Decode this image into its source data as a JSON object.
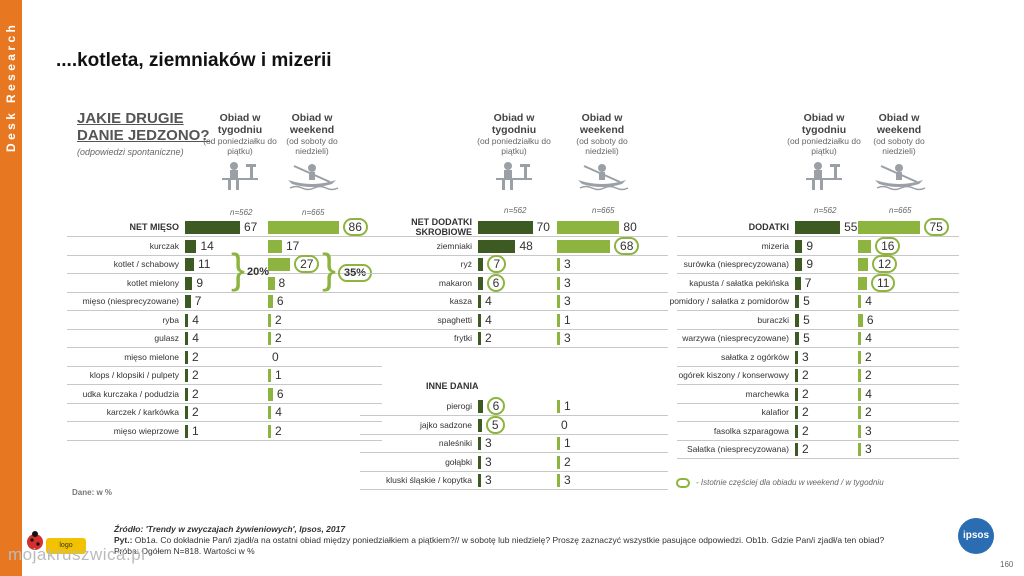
{
  "sidebar": {
    "label": "Desk Research"
  },
  "page_title": "....kotleta, ziemniaków i mizerii",
  "question": {
    "title_line1": "JAKIE DRUGIE",
    "title_line2": "DANIE JEDZONO?",
    "subtitle": "(odpowiedzi spontaniczne)"
  },
  "columns": {
    "weekday": {
      "title": "Obiad w tygodniu",
      "sub": "(od poniedziałku do piątku)",
      "n": "n=562"
    },
    "weekend": {
      "title": "Obiad w weekend",
      "sub": "(od soboty do niedzieli)",
      "n": "n=665"
    }
  },
  "colors": {
    "weekday": "#3d5a22",
    "weekend": "#8db43f",
    "sidebar": "#e87722"
  },
  "chart_data": [
    {
      "type": "bar",
      "title": "JAKIE DRUGIE DANIE JEDZONO?",
      "categories": [
        "NET MIĘSO",
        "kurczak",
        "kotlet / schabowy",
        "kotlet mielony",
        "mięso (niesprecyzowane)",
        "ryba",
        "gulasz",
        "mięso mielone",
        "klops / klopsiki / pulpety",
        "udka kurczaka / podudzia",
        "karczek / karkówka",
        "mięso wieprzowe"
      ],
      "series": [
        {
          "name": "Obiad w tygodniu",
          "values": [
            67,
            14,
            11,
            9,
            7,
            4,
            4,
            2,
            2,
            2,
            2,
            1
          ]
        },
        {
          "name": "Obiad w weekend",
          "values": [
            86,
            17,
            27,
            8,
            6,
            2,
            2,
            0,
            1,
            6,
            4,
            2
          ]
        }
      ],
      "circled": {
        "weekday": [],
        "weekend": [
          0,
          2
        ]
      },
      "groups": [
        {
          "label_weekday": "20%",
          "label_weekend": "35%"
        }
      ]
    },
    {
      "type": "bar",
      "categories": [
        "NET DODATKI SKROBIOWE",
        "ziemniaki",
        "ryż",
        "makaron",
        "kasza",
        "spaghetti",
        "frytki"
      ],
      "series": [
        {
          "name": "Obiad w tygodniu",
          "values": [
            70,
            48,
            7,
            6,
            4,
            4,
            2
          ]
        },
        {
          "name": "Obiad w weekend",
          "values": [
            80,
            68,
            3,
            3,
            3,
            1,
            3
          ]
        }
      ],
      "circled": {
        "weekday": [
          2,
          3
        ],
        "weekend": [
          1
        ]
      }
    },
    {
      "type": "bar",
      "title": "INNE DANIA",
      "categories": [
        "pierogi",
        "jajko sadzone",
        "naleśniki",
        "gołąbki",
        "kluski śląskie / kopytka"
      ],
      "series": [
        {
          "name": "Obiad w tygodniu",
          "values": [
            6,
            5,
            3,
            3,
            3
          ]
        },
        {
          "name": "Obiad w weekend",
          "values": [
            1,
            0,
            1,
            2,
            3
          ]
        }
      ],
      "circled": {
        "weekday": [
          0,
          1
        ],
        "weekend": []
      }
    },
    {
      "type": "bar",
      "categories": [
        "DODATKI",
        "mizeria",
        "surówka (niesprecyzowana)",
        "kapusta / sałatka pekińska",
        "pomidory / sałatka z pomidorów",
        "buraczki",
        "warzywa (niesprecyzowane)",
        "sałatka z ogórków",
        "ogórek kiszony / konserwowy",
        "marchewka",
        "kalafior",
        "fasolka szparagowa",
        "Sałatka (niesprecyzowana)"
      ],
      "series": [
        {
          "name": "Obiad w tygodniu",
          "values": [
            55,
            9,
            9,
            7,
            5,
            5,
            5,
            3,
            2,
            2,
            2,
            2,
            2
          ]
        },
        {
          "name": "Obiad w weekend",
          "values": [
            75,
            16,
            12,
            11,
            4,
            6,
            4,
            2,
            2,
            4,
            2,
            3,
            3
          ]
        }
      ],
      "circled": {
        "weekday": [],
        "weekend": [
          0,
          1,
          2,
          3
        ]
      }
    }
  ],
  "legend": "- Istotnie częściej dla obiadu w weekend / w tygodniu",
  "base": "Dane: w %",
  "footer": {
    "line1": "Źródło: 'Trendy w zwyczajach żywieniowych', Ipsos, 2017",
    "line2_label": "Pyt.:",
    "line2": "Ob1a. Co dokładnie Pan/i zjadł/a na ostatni obiad między poniedziałkiem a piątkiem?// w sobotę lub niedzielę? Proszę zaznaczyć wszystkie pasujące odpowiedzi. Ob1b. Gdzie Pan/i zjadł/a ten obiad?",
    "line3": "Próba: Ogółem N=818. Wartości w %"
  },
  "logo": "ipsos",
  "page_number": "160",
  "watermark": "mojakruszwica.pl",
  "badge": "logo"
}
